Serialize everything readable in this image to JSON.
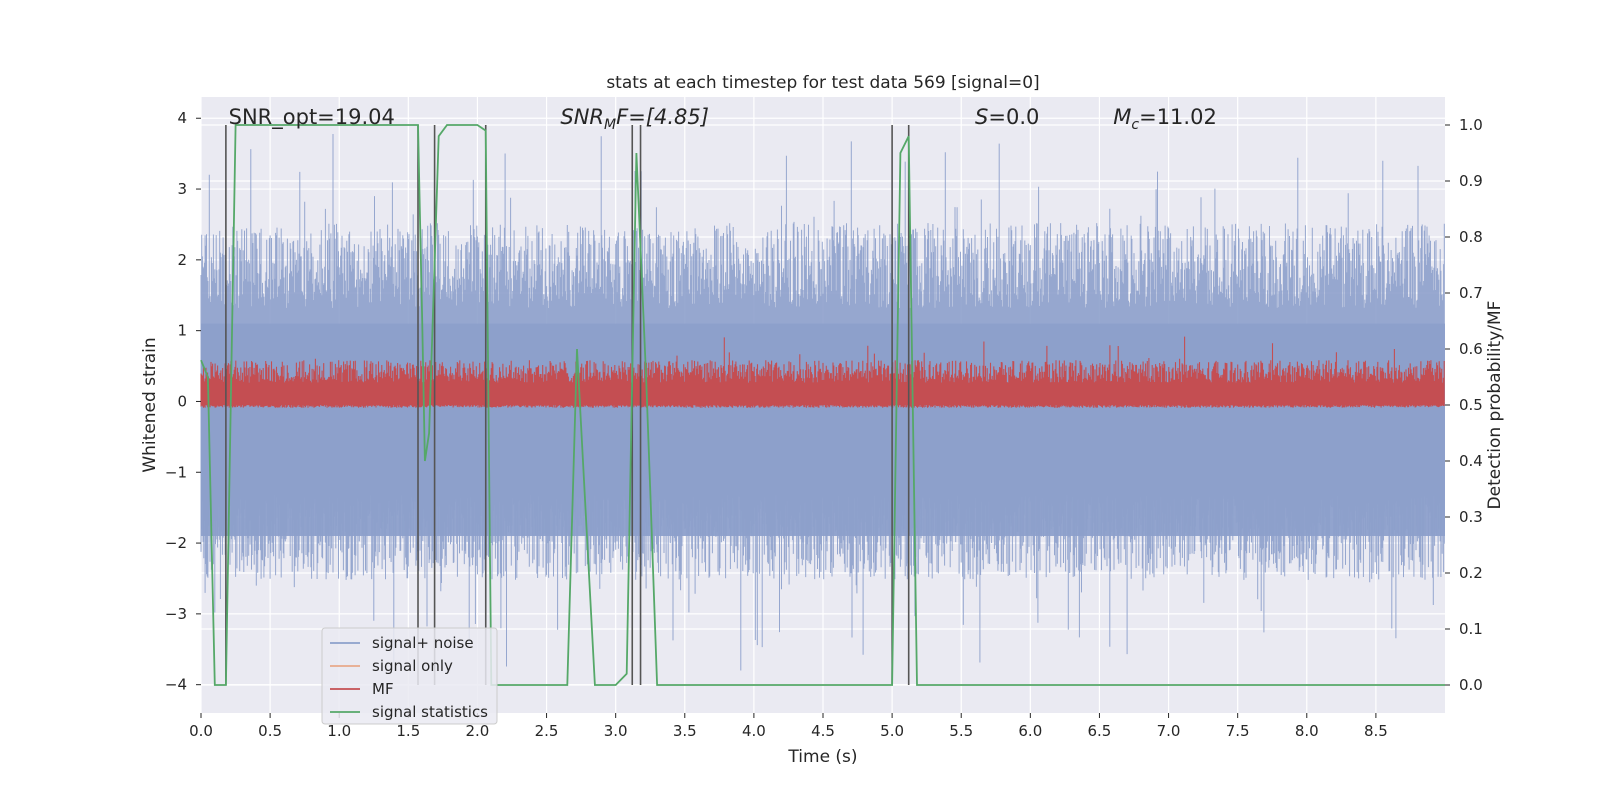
{
  "chart_data": {
    "type": "line",
    "title": "stats at each timestep for test data 569 [signal=0]",
    "xlabel": "Time (s)",
    "ylabel": "Whitened strain",
    "y2label": "Detection probability/MF",
    "xlim": [
      0,
      9
    ],
    "ylim": [
      -4.4,
      4.3
    ],
    "y2lim": [
      -0.05,
      1.05
    ],
    "xticks": [
      0.0,
      0.5,
      1.0,
      1.5,
      2.0,
      2.5,
      3.0,
      3.5,
      4.0,
      4.5,
      5.0,
      5.5,
      6.0,
      6.5,
      7.0,
      7.5,
      8.0,
      8.5
    ],
    "xtick_labels": [
      "0.0",
      "0.5",
      "1.0",
      "1.5",
      "2.0",
      "2.5",
      "3.0",
      "3.5",
      "4.0",
      "4.5",
      "5.0",
      "5.5",
      "6.0",
      "6.5",
      "7.0",
      "7.5",
      "8.0",
      "8.5"
    ],
    "yticks": [
      -4,
      -3,
      -2,
      -1,
      0,
      1,
      2,
      3,
      4
    ],
    "ytick_labels": [
      "−4",
      "−3",
      "−2",
      "−1",
      "0",
      "1",
      "2",
      "3",
      "4"
    ],
    "y2ticks": [
      0.0,
      0.1,
      0.2,
      0.3,
      0.4,
      0.5,
      0.6,
      0.7,
      0.8,
      0.9,
      1.0
    ],
    "y2tick_labels": [
      "0.0",
      "0.1",
      "0.2",
      "0.3",
      "0.4",
      "0.5",
      "0.6",
      "0.7",
      "0.8",
      "0.9",
      "1.0"
    ],
    "annotations": {
      "snr_opt": "SNR_opt=19.04",
      "snr_mf_base": "SNR",
      "snr_mf_sub": "M",
      "snr_mf_rest": "F=[4.85]",
      "s_sym": "S",
      "s_rest": "=0.0",
      "mc_sym": "M",
      "mc_sub": "c",
      "mc_rest": "=11.02"
    },
    "noise_envelope": {
      "description_free": true,
      "typical_upper": 2.4,
      "typical_lower": -2.4,
      "peak_upper": 3.95,
      "peak_lower": -3.8
    },
    "mf_band": {
      "axis": "y2",
      "typical_low": 0.5,
      "typical_high": 0.58,
      "peak": 0.63
    },
    "event_marker_times": [
      0.18,
      1.57,
      1.69,
      2.06,
      3.12,
      3.18,
      5.0,
      5.12
    ],
    "series": [
      {
        "name": "signal+ noise",
        "color": "#8da0cb",
        "axis": "y",
        "kind": "noise"
      },
      {
        "name": "signal only",
        "color": "#e8a98a",
        "axis": "y",
        "kind": "flat",
        "value": 0.0
      },
      {
        "name": "MF",
        "color": "#c44e52",
        "axis": "y2",
        "kind": "band"
      },
      {
        "name": "signal statistics",
        "color": "#55a868",
        "axis": "y2",
        "x": [
          0.0,
          0.05,
          0.1,
          0.12,
          0.18,
          0.25,
          0.3,
          1.0,
          1.5,
          1.57,
          1.6,
          1.62,
          1.65,
          1.72,
          1.78,
          2.0,
          2.06,
          2.1,
          2.15,
          2.3,
          2.6,
          2.65,
          2.72,
          2.85,
          3.0,
          3.08,
          3.15,
          3.22,
          3.25,
          3.3,
          3.5,
          5.0,
          5.06,
          5.12,
          5.18,
          5.25,
          7.0,
          9.0
        ],
        "y": [
          0.58,
          0.55,
          0.0,
          0.0,
          0.0,
          1.0,
          1.0,
          1.0,
          1.0,
          1.0,
          0.65,
          0.4,
          0.45,
          0.98,
          1.0,
          1.0,
          0.99,
          0.0,
          0.0,
          0.0,
          0.0,
          0.0,
          0.6,
          0.0,
          0.0,
          0.02,
          0.95,
          0.55,
          0.35,
          0.0,
          0.0,
          0.0,
          0.95,
          0.98,
          0.0,
          0.0,
          0.0,
          0.0
        ]
      }
    ],
    "legend": {
      "position": "lower-left",
      "entries": [
        {
          "label": "signal+ noise",
          "color": "#8da0cb"
        },
        {
          "label": "signal only",
          "color": "#e8a98a"
        },
        {
          "label": "MF",
          "color": "#c44e52"
        },
        {
          "label": "signal statistics",
          "color": "#55a868"
        }
      ]
    },
    "colors": {
      "plot_bg": "#eaeaf2",
      "grid": "#ffffff",
      "marker": "#555555",
      "legend_bg": "#eaeaf2",
      "legend_border": "#cccccc",
      "text": "#262626"
    }
  }
}
